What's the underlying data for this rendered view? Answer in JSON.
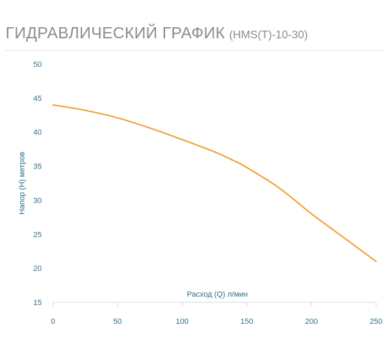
{
  "page": {
    "title": "ГИДРАВЛИЧЕСКИЙ ГРАФИК",
    "model": "(HMS(T)-10-30)"
  },
  "chart_data": {
    "type": "line",
    "title": "ГИДРАВЛИЧЕСКИЙ ГРАФИК (HMS(T)-10-30)",
    "xlabel": "Расход (Q) л/мин",
    "ylabel": "Напор (H) метров",
    "xlim": [
      0,
      250
    ],
    "ylim": [
      15,
      50
    ],
    "x_ticks": [
      0,
      50,
      100,
      150,
      200,
      250
    ],
    "y_ticks": [
      15,
      20,
      25,
      30,
      35,
      40,
      45,
      50
    ],
    "grid": false,
    "legend": "none",
    "line_color": "#f0a030",
    "axis_color": "#2b6f8c",
    "series": [
      {
        "x": [
          0,
          25,
          50,
          75,
          100,
          125,
          140,
          150,
          175,
          200,
          225,
          250
        ],
        "values": [
          44,
          43.2,
          42.1,
          40.6,
          38.9,
          37.1,
          35.8,
          34.8,
          31.8,
          28.0,
          24.5,
          21.0
        ]
      }
    ]
  }
}
